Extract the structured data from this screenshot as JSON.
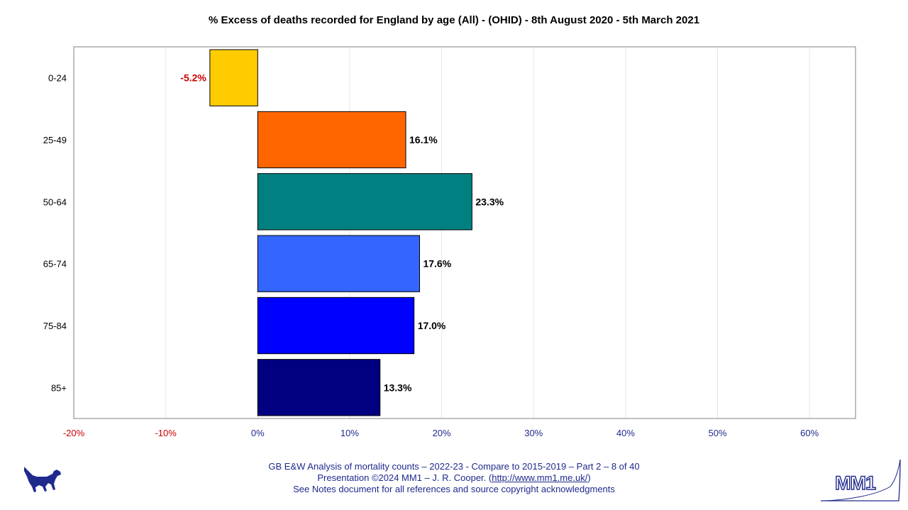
{
  "chart_data": {
    "type": "bar",
    "orientation": "horizontal",
    "title": "% Excess of deaths recorded for England by age (All) - (OHID) - 8th August 2020 - 5th March 2021",
    "categories": [
      "0-24",
      "25-49",
      "50-64",
      "65-74",
      "75-84",
      "85+"
    ],
    "values": [
      -5.2,
      16.1,
      23.3,
      17.6,
      17.0,
      13.3
    ],
    "value_labels": [
      "-5.2%",
      "16.1%",
      "23.3%",
      "17.6%",
      "17.0%",
      "13.3%"
    ],
    "colors": [
      "#ffcc00",
      "#ff6600",
      "#008080",
      "#3366ff",
      "#0000ff",
      "#000080"
    ],
    "negative_label_color": "#cc0000",
    "xlim": [
      -20,
      65
    ],
    "x_ticks": [
      -20,
      -10,
      0,
      10,
      20,
      30,
      40,
      50,
      60
    ],
    "x_tick_labels": [
      "-20%",
      "-10%",
      "0%",
      "10%",
      "20%",
      "30%",
      "40%",
      "50%",
      "60%"
    ],
    "xlabel": "",
    "ylabel": "",
    "grid": true
  },
  "footer": {
    "line1": "GB E&W Analysis of mortality counts – 2022-23 - Compare to 2015-2019 – Part 2 – 8 of 40",
    "line2_prefix": "Presentation ©2024 MM1 – J. R. Cooper. (",
    "line2_link": "http://www.mm1.me.uk/",
    "line2_suffix": ")",
    "line3": "See Notes document for all references and source copyright acknowledgments"
  },
  "logo": {
    "text": "MM1",
    "color": "#1f2a8c"
  }
}
